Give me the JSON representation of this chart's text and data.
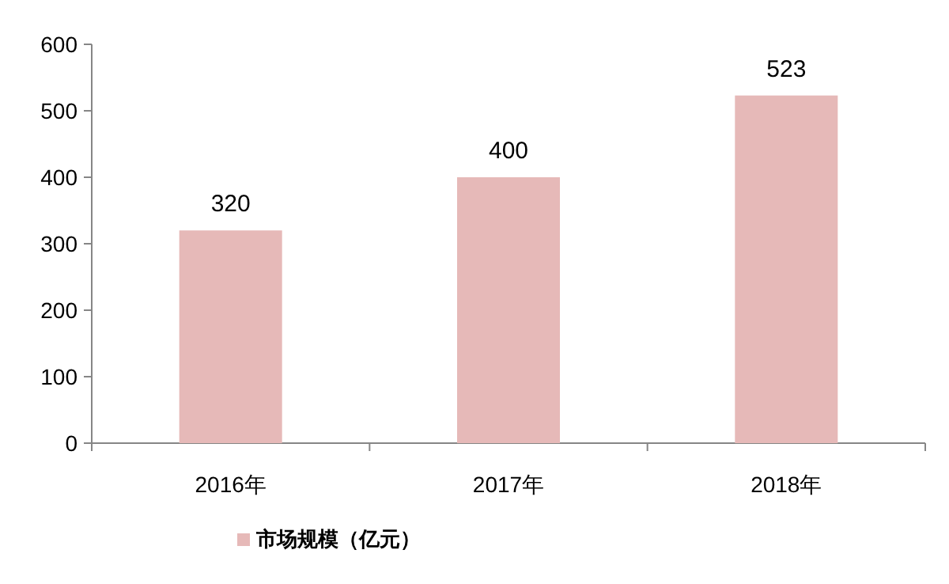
{
  "chart_data": {
    "type": "bar",
    "categories": [
      "2016年",
      "2017年",
      "2018年"
    ],
    "series": [
      {
        "name": "市场规模（亿元）",
        "color": "#e6b9b8",
        "values": [
          320,
          400,
          523
        ]
      }
    ],
    "ylim": [
      0,
      600
    ],
    "yticks": [
      0,
      100,
      200,
      300,
      400,
      500,
      600
    ],
    "data_labels": true,
    "legend": "bottom",
    "grid": false
  }
}
